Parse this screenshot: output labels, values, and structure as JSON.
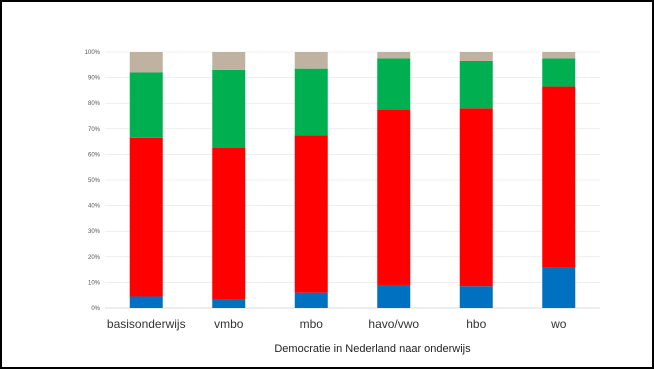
{
  "chart_data": {
    "type": "bar",
    "stacked": true,
    "normalized": true,
    "title": "",
    "xlabel": "Democratie in Nederland naar onderwijs",
    "ylabel": "",
    "ylim": [
      0,
      100
    ],
    "yticks": [
      "0%",
      "10%",
      "20%",
      "30%",
      "40%",
      "50%",
      "60%",
      "70%",
      "80%",
      "90%",
      "100%"
    ],
    "grid": true,
    "legend": "none",
    "categories": [
      "basisonderwijs",
      "vmbo",
      "mbo",
      "havo/vwo",
      "hbo",
      "wo"
    ],
    "series": [
      {
        "color": "#0070C0",
        "values": [
          4.5,
          3.5,
          6,
          9,
          8.5,
          16
        ]
      },
      {
        "color": "#FF0000",
        "values": [
          62,
          59,
          61.5,
          68.5,
          69.5,
          70.5
        ]
      },
      {
        "color": "#00B050",
        "values": [
          25.5,
          30.5,
          26,
          20,
          18.5,
          11
        ]
      },
      {
        "color": "#BFB2A0",
        "values": [
          8,
          7,
          6.5,
          2.5,
          3.5,
          2.5
        ]
      }
    ]
  }
}
